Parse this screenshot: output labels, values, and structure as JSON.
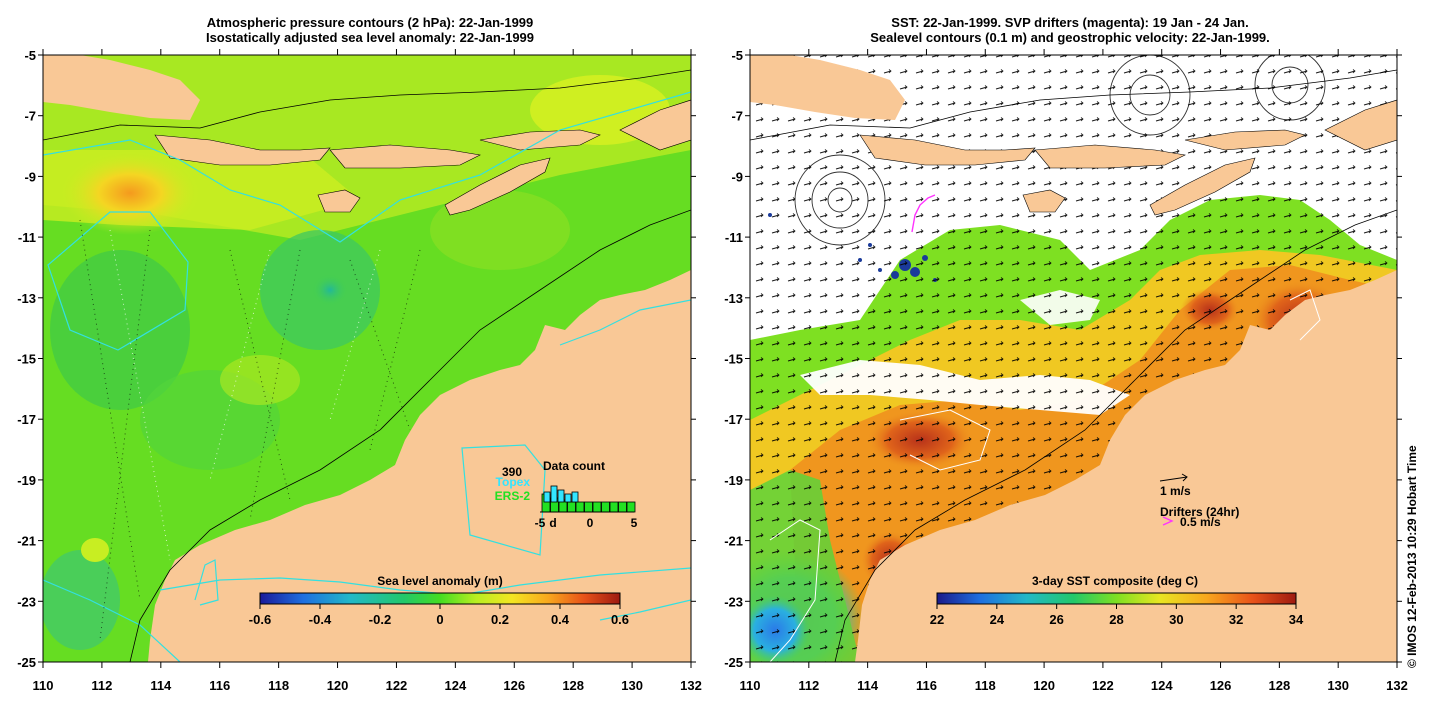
{
  "left_panel": {
    "title_line1": "Atmospheric pressure contours (2 hPa): 22-Jan-1999",
    "title_line2": "Isostatically adjusted sea level anomaly: 22-Jan-1999",
    "colorbar_label": "Sea level anomaly (m)",
    "colorbar_ticks": [
      "-0.6",
      "-0.4",
      "-0.2",
      "0",
      "0.2",
      "0.4",
      "0.6"
    ],
    "data_count": {
      "title": "Data count",
      "count": "390",
      "topex_label": "Topex",
      "ers_label": "ERS-2",
      "x_ticks": [
        "-5",
        "d",
        "0",
        "5"
      ],
      "topex_color": "#33e5ff",
      "ers_color": "#22e022"
    }
  },
  "right_panel": {
    "title_line1": "SST: 22-Jan-1999. SVP drifters (magenta): 19 Jan - 24 Jan.",
    "title_line2": "Sealevel contours (0.1 m) and geostrophic velocity: 22-Jan-1999.",
    "colorbar_label": "3-day SST composite (deg C)",
    "colorbar_ticks": [
      "22",
      "24",
      "26",
      "28",
      "30",
      "32",
      "34"
    ],
    "velocity_legend": "1 m/s",
    "drifters_legend": "Drifters (24hr)",
    "drifter_speed": "0.5 m/s",
    "drifter_color": "#ff33ff"
  },
  "axes": {
    "lat_ticks": [
      "-5",
      "-7",
      "-9",
      "-11",
      "-13",
      "-15",
      "-17",
      "-19",
      "-21",
      "-23",
      "-25"
    ],
    "lon_ticks": [
      "110",
      "112",
      "114",
      "116",
      "118",
      "120",
      "122",
      "124",
      "126",
      "128",
      "130",
      "132"
    ]
  },
  "credit": "© IMOS 12-Feb-2013 10:29 Hobart Time",
  "colors": {
    "land": "#f9c896",
    "ocean_green": "#66dd22",
    "contour_cyan": "#33e0e0"
  }
}
